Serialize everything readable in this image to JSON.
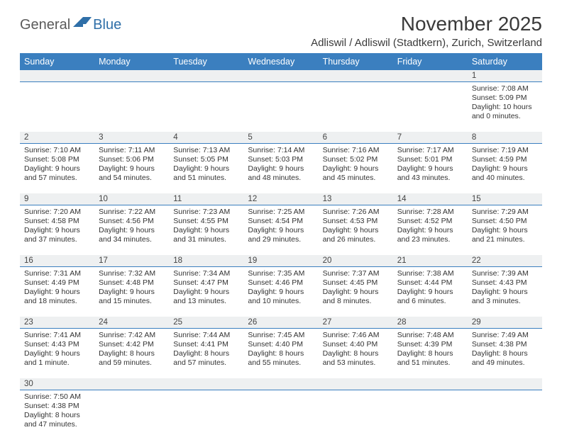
{
  "brand": {
    "part1": "General",
    "part2": "Blue"
  },
  "title": "November 2025",
  "location": "Adliswil / Adliswil (Stadtkern), Zurich, Switzerland",
  "colors": {
    "header_bg": "#3b7fbf",
    "header_fg": "#ffffff",
    "daynum_bg": "#eef0f1",
    "rule": "#3b7fbf"
  },
  "weekdays": [
    "Sunday",
    "Monday",
    "Tuesday",
    "Wednesday",
    "Thursday",
    "Friday",
    "Saturday"
  ],
  "weeks": [
    [
      null,
      null,
      null,
      null,
      null,
      null,
      {
        "n": "1",
        "sr": "7:08 AM",
        "ss": "5:09 PM",
        "dl": "10 hours and 0 minutes."
      }
    ],
    [
      {
        "n": "2",
        "sr": "7:10 AM",
        "ss": "5:08 PM",
        "dl": "9 hours and 57 minutes."
      },
      {
        "n": "3",
        "sr": "7:11 AM",
        "ss": "5:06 PM",
        "dl": "9 hours and 54 minutes."
      },
      {
        "n": "4",
        "sr": "7:13 AM",
        "ss": "5:05 PM",
        "dl": "9 hours and 51 minutes."
      },
      {
        "n": "5",
        "sr": "7:14 AM",
        "ss": "5:03 PM",
        "dl": "9 hours and 48 minutes."
      },
      {
        "n": "6",
        "sr": "7:16 AM",
        "ss": "5:02 PM",
        "dl": "9 hours and 45 minutes."
      },
      {
        "n": "7",
        "sr": "7:17 AM",
        "ss": "5:01 PM",
        "dl": "9 hours and 43 minutes."
      },
      {
        "n": "8",
        "sr": "7:19 AM",
        "ss": "4:59 PM",
        "dl": "9 hours and 40 minutes."
      }
    ],
    [
      {
        "n": "9",
        "sr": "7:20 AM",
        "ss": "4:58 PM",
        "dl": "9 hours and 37 minutes."
      },
      {
        "n": "10",
        "sr": "7:22 AM",
        "ss": "4:56 PM",
        "dl": "9 hours and 34 minutes."
      },
      {
        "n": "11",
        "sr": "7:23 AM",
        "ss": "4:55 PM",
        "dl": "9 hours and 31 minutes."
      },
      {
        "n": "12",
        "sr": "7:25 AM",
        "ss": "4:54 PM",
        "dl": "9 hours and 29 minutes."
      },
      {
        "n": "13",
        "sr": "7:26 AM",
        "ss": "4:53 PM",
        "dl": "9 hours and 26 minutes."
      },
      {
        "n": "14",
        "sr": "7:28 AM",
        "ss": "4:52 PM",
        "dl": "9 hours and 23 minutes."
      },
      {
        "n": "15",
        "sr": "7:29 AM",
        "ss": "4:50 PM",
        "dl": "9 hours and 21 minutes."
      }
    ],
    [
      {
        "n": "16",
        "sr": "7:31 AM",
        "ss": "4:49 PM",
        "dl": "9 hours and 18 minutes."
      },
      {
        "n": "17",
        "sr": "7:32 AM",
        "ss": "4:48 PM",
        "dl": "9 hours and 15 minutes."
      },
      {
        "n": "18",
        "sr": "7:34 AM",
        "ss": "4:47 PM",
        "dl": "9 hours and 13 minutes."
      },
      {
        "n": "19",
        "sr": "7:35 AM",
        "ss": "4:46 PM",
        "dl": "9 hours and 10 minutes."
      },
      {
        "n": "20",
        "sr": "7:37 AM",
        "ss": "4:45 PM",
        "dl": "9 hours and 8 minutes."
      },
      {
        "n": "21",
        "sr": "7:38 AM",
        "ss": "4:44 PM",
        "dl": "9 hours and 6 minutes."
      },
      {
        "n": "22",
        "sr": "7:39 AM",
        "ss": "4:43 PM",
        "dl": "9 hours and 3 minutes."
      }
    ],
    [
      {
        "n": "23",
        "sr": "7:41 AM",
        "ss": "4:43 PM",
        "dl": "9 hours and 1 minute."
      },
      {
        "n": "24",
        "sr": "7:42 AM",
        "ss": "4:42 PM",
        "dl": "8 hours and 59 minutes."
      },
      {
        "n": "25",
        "sr": "7:44 AM",
        "ss": "4:41 PM",
        "dl": "8 hours and 57 minutes."
      },
      {
        "n": "26",
        "sr": "7:45 AM",
        "ss": "4:40 PM",
        "dl": "8 hours and 55 minutes."
      },
      {
        "n": "27",
        "sr": "7:46 AM",
        "ss": "4:40 PM",
        "dl": "8 hours and 53 minutes."
      },
      {
        "n": "28",
        "sr": "7:48 AM",
        "ss": "4:39 PM",
        "dl": "8 hours and 51 minutes."
      },
      {
        "n": "29",
        "sr": "7:49 AM",
        "ss": "4:38 PM",
        "dl": "8 hours and 49 minutes."
      }
    ],
    [
      {
        "n": "30",
        "sr": "7:50 AM",
        "ss": "4:38 PM",
        "dl": "8 hours and 47 minutes."
      },
      null,
      null,
      null,
      null,
      null,
      null
    ]
  ],
  "labels": {
    "sunrise": "Sunrise: ",
    "sunset": "Sunset: ",
    "daylight": "Daylight: "
  }
}
